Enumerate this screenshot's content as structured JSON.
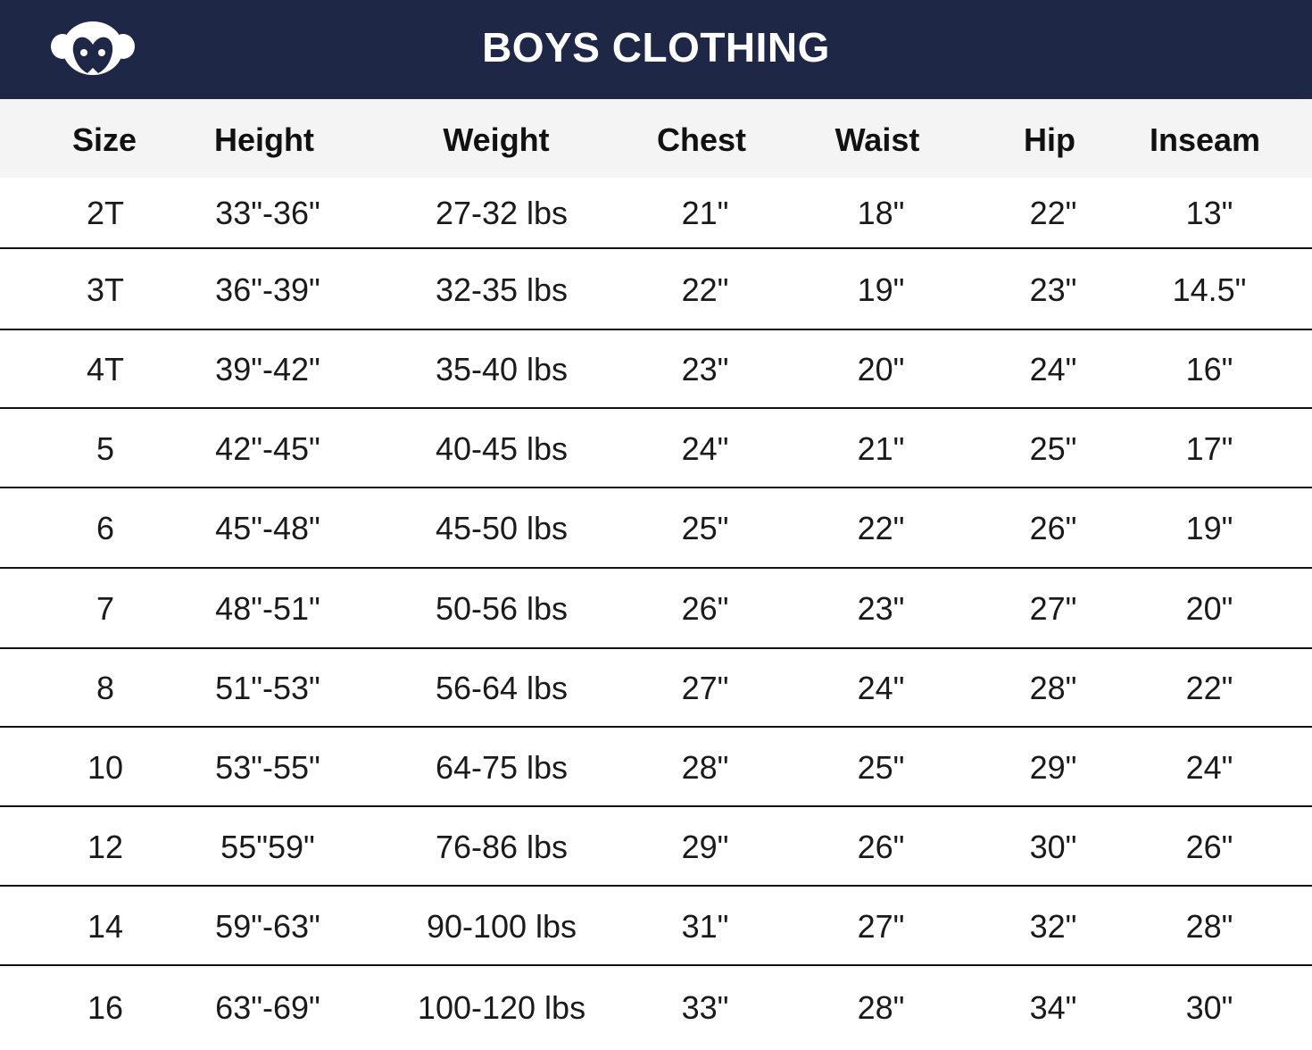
{
  "header": {
    "title": "BOYS CLOTHING",
    "logo": "monkey-face-logo",
    "background": "#1f2747"
  },
  "table": {
    "columns": [
      "Size",
      "Height",
      "Weight",
      "Chest",
      "Waist",
      "Hip",
      "Inseam"
    ],
    "rows": [
      [
        "2T",
        "33\"-36\"",
        "27-32 lbs",
        "21\"",
        "18\"",
        "22\"",
        "13\""
      ],
      [
        "3T",
        "36\"-39\"",
        "32-35 lbs",
        "22\"",
        "19\"",
        "23\"",
        "14.5\""
      ],
      [
        "4T",
        "39\"-42\"",
        "35-40 lbs",
        "23\"",
        "20\"",
        "24\"",
        "16\""
      ],
      [
        "5",
        "42\"-45\"",
        "40-45 lbs",
        "24\"",
        "21\"",
        "25\"",
        "17\""
      ],
      [
        "6",
        "45\"-48\"",
        "45-50 lbs",
        "25\"",
        "22\"",
        "26\"",
        "19\""
      ],
      [
        "7",
        "48\"-51\"",
        "50-56 lbs",
        "26\"",
        "23\"",
        "27\"",
        "20\""
      ],
      [
        "8",
        "51\"-53\"",
        "56-64 lbs",
        "27\"",
        "24\"",
        "28\"",
        "22\""
      ],
      [
        "10",
        "53\"-55\"",
        "64-75 lbs",
        "28\"",
        "25\"",
        "29\"",
        "24\""
      ],
      [
        "12",
        "55\"59\"",
        "76-86 lbs",
        "29\"",
        "26\"",
        "30\"",
        "26\""
      ],
      [
        "14",
        "59\"-63\"",
        "90-100 lbs",
        "31\"",
        "27\"",
        "32\"",
        "28\""
      ],
      [
        "16",
        "63\"-69\"",
        "100-120 lbs",
        "33\"",
        "28\"",
        "34\"",
        "30\""
      ]
    ]
  }
}
